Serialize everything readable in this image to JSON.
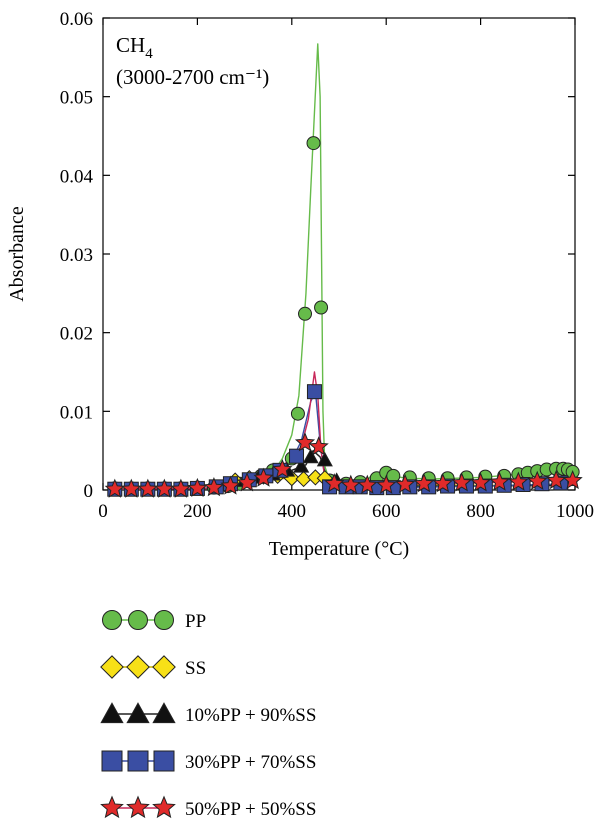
{
  "chart_data": {
    "type": "line",
    "title": "",
    "annotation": {
      "line1_main": "CH",
      "line1_sub": "4",
      "line2": "(3000-2700 cm⁻¹)"
    },
    "xlabel": "Temperature (°C)",
    "ylabel": "Absorbance",
    "xlim": [
      0,
      1000
    ],
    "ylim": [
      0,
      0.06
    ],
    "xticks": [
      0,
      200,
      400,
      600,
      800,
      1000
    ],
    "xtick_labels": [
      "0",
      "200",
      "400",
      "600",
      "800",
      "1000"
    ],
    "yticks": [
      0,
      0.01,
      0.02,
      0.03,
      0.04,
      0.05,
      0.06
    ],
    "ytick_labels": [
      "0",
      "0.01",
      "0.02",
      "0.03",
      "0.04",
      "0.05",
      "0.06"
    ],
    "grid": false,
    "legend_position": "below",
    "series": [
      {
        "name": "PP",
        "marker": "circle",
        "color": "#66bb4a",
        "line_color": "#66bb4a",
        "line": {
          "x": [
            20,
            200,
            240,
            280,
            320,
            360,
            380,
            400,
            415,
            430,
            440,
            448,
            455,
            460,
            463,
            466,
            470,
            480,
            500,
            560,
            570,
            580,
            600,
            640,
            700,
            800,
            880,
            920,
            960,
            985,
            1000
          ],
          "y": [
            0.0002,
            0.0002,
            0.0003,
            0.0005,
            0.001,
            0.0022,
            0.004,
            0.007,
            0.012,
            0.025,
            0.038,
            0.048,
            0.0567,
            0.05,
            0.03,
            0.01,
            0.003,
            0.0012,
            0.0008,
            0.0012,
            0.002,
            0.0015,
            0.002,
            0.0015,
            0.0014,
            0.0016,
            0.002,
            0.0025,
            0.0028,
            0.0025,
            0.0022
          ]
        },
        "points": {
          "x": [
            25,
            60,
            95,
            130,
            165,
            200,
            235,
            265,
            290,
            310,
            335,
            360,
            400,
            413,
            428,
            446,
            462,
            480,
            515,
            545,
            580,
            600,
            615,
            650,
            690,
            730,
            770,
            810,
            850,
            880,
            900,
            920,
            940,
            960,
            975,
            985,
            995
          ],
          "y": [
            0.0002,
            0.0002,
            0.0002,
            0.0002,
            0.0002,
            0.0003,
            0.0003,
            0.0005,
            0.0008,
            0.0012,
            0.0018,
            0.0025,
            0.004,
            0.0097,
            0.0224,
            0.0441,
            0.0232,
            0.0012,
            0.0008,
            0.001,
            0.0015,
            0.0022,
            0.0018,
            0.0016,
            0.0015,
            0.0015,
            0.0016,
            0.0017,
            0.0018,
            0.002,
            0.0022,
            0.0024,
            0.0026,
            0.0027,
            0.0027,
            0.0026,
            0.0023
          ]
        }
      },
      {
        "name": "SS",
        "marker": "diamond",
        "color": "#f7e017",
        "line_color": "#c8b400",
        "line": {
          "x": [
            20,
            240,
            280,
            320,
            360,
            400,
            440,
            480,
            520,
            600,
            800,
            1000
          ],
          "y": [
            0.0001,
            0.0002,
            0.0008,
            0.0012,
            0.0014,
            0.0015,
            0.0016,
            0.0014,
            0.001,
            0.0007,
            0.0006,
            0.0006
          ],
          "x_dummy": []
        },
        "points": {
          "x": [
            280,
            310,
            340,
            370,
            400,
            425,
            450,
            470
          ],
          "y": [
            0.0012,
            0.0015,
            0.0017,
            0.0018,
            0.0015,
            0.0014,
            0.0016,
            0.0015
          ]
        }
      },
      {
        "name": "10%PP + 90%SS",
        "marker": "triangle",
        "color": "#111111",
        "line_color": "#222222",
        "line": {
          "x": [
            20,
            240,
            280,
            320,
            360,
            400,
            430,
            445,
            460,
            475,
            490,
            520,
            600,
            800,
            1000
          ],
          "y": [
            0.0001,
            0.0002,
            0.0007,
            0.0012,
            0.0018,
            0.0025,
            0.0032,
            0.005,
            0.0042,
            0.0015,
            0.0008,
            0.0006,
            0.0005,
            0.0005,
            0.0006
          ],
          "x_dummy": []
        },
        "points": {
          "x": [
            300,
            330,
            360,
            390,
            420,
            440,
            470,
            495
          ],
          "y": [
            0.0012,
            0.0016,
            0.002,
            0.0025,
            0.003,
            0.0042,
            0.0038,
            0.0012
          ]
        }
      },
      {
        "name": "30%PP + 70%SS",
        "marker": "square",
        "color": "#3a4ea3",
        "line_color": "#3a4ea3",
        "line": {
          "x": [
            20,
            200,
            240,
            280,
            320,
            360,
            400,
            420,
            440,
            450,
            460,
            470,
            490,
            520,
            600,
            800,
            1000
          ],
          "y": [
            0.0001,
            0.0002,
            0.0003,
            0.0006,
            0.0012,
            0.002,
            0.0038,
            0.0062,
            0.0112,
            0.0126,
            0.006,
            0.0015,
            0.0006,
            0.0004,
            0.0003,
            0.0005,
            0.0008
          ],
          "x_dummy": []
        },
        "points": {
          "x": [
            25,
            60,
            95,
            130,
            165,
            200,
            240,
            270,
            310,
            345,
            375,
            410,
            448,
            480,
            515,
            545,
            580,
            615,
            650,
            690,
            730,
            770,
            810,
            850,
            890,
            930,
            970
          ],
          "y": [
            0.0001,
            0.0001,
            0.0001,
            0.0001,
            0.0001,
            0.0002,
            0.0004,
            0.0008,
            0.0013,
            0.0018,
            0.0025,
            0.0043,
            0.0125,
            0.0004,
            0.0004,
            0.0004,
            0.0003,
            0.0003,
            0.0004,
            0.0004,
            0.0005,
            0.0005,
            0.0005,
            0.0006,
            0.0007,
            0.0008,
            0.0009
          ]
        }
      },
      {
        "name": "50%PP + 50%SS",
        "marker": "star",
        "color": "#e02a2a",
        "line_color": "#c8285a",
        "line": {
          "x": [
            20,
            200,
            240,
            280,
            320,
            360,
            400,
            420,
            435,
            448,
            455,
            462,
            470,
            490,
            520,
            600,
            800,
            1000
          ],
          "y": [
            0.0001,
            0.0002,
            0.0003,
            0.0006,
            0.0012,
            0.0022,
            0.004,
            0.0055,
            0.009,
            0.015,
            0.012,
            0.005,
            0.0015,
            0.0008,
            0.0006,
            0.0007,
            0.0009,
            0.0013
          ],
          "x_dummy": []
        },
        "points": {
          "x": [
            25,
            60,
            95,
            130,
            165,
            200,
            235,
            270,
            305,
            340,
            380,
            428,
            457,
            490,
            525,
            560,
            600,
            640,
            680,
            720,
            760,
            800,
            840,
            880,
            920,
            960,
            995
          ],
          "y": [
            0.0001,
            0.0001,
            0.0001,
            0.0001,
            0.0001,
            0.0002,
            0.0003,
            0.0005,
            0.0009,
            0.0015,
            0.0026,
            0.006,
            0.0055,
            0.0008,
            0.0006,
            0.0006,
            0.0006,
            0.0007,
            0.0008,
            0.0008,
            0.0009,
            0.0009,
            0.001,
            0.001,
            0.0011,
            0.0012,
            0.0012
          ]
        }
      }
    ]
  }
}
